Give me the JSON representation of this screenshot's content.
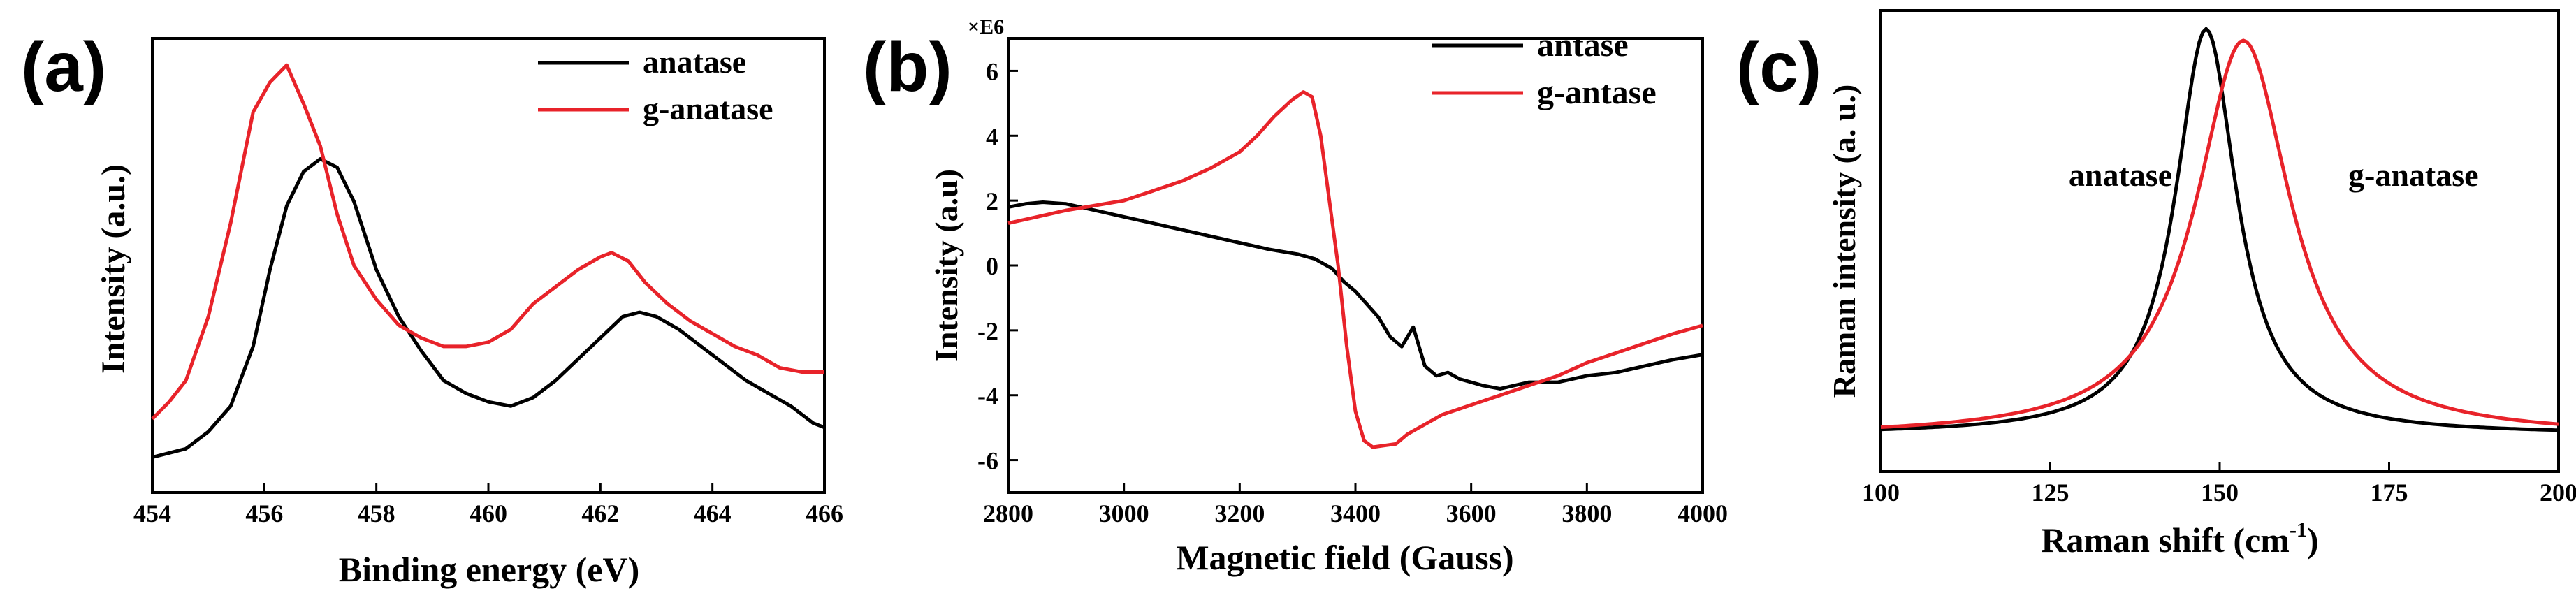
{
  "figure": {
    "panels": [
      "(a)",
      "(b)",
      "(c)"
    ]
  },
  "chart_data": [
    {
      "type": "line",
      "panel_label": "(a)",
      "title": "",
      "xlabel": "Binding energy (eV)",
      "ylabel": "Intensity (a.u.)",
      "xlim": [
        454,
        466
      ],
      "ylim": [
        0,
        100
      ],
      "xticks": [
        454,
        456,
        458,
        460,
        462,
        464,
        466
      ],
      "yticks": [],
      "grid": false,
      "legend_position": "top-right",
      "series": [
        {
          "name": "anatase",
          "color": "#000000",
          "x": [
            454.0,
            454.3,
            454.6,
            455.0,
            455.4,
            455.8,
            456.1,
            456.4,
            456.7,
            457.0,
            457.3,
            457.6,
            458.0,
            458.4,
            458.8,
            459.2,
            459.6,
            460.0,
            460.4,
            460.8,
            461.2,
            461.6,
            462.0,
            462.4,
            462.7,
            463.0,
            463.4,
            463.8,
            464.2,
            464.6,
            465.0,
            465.4,
            465.8,
            466.0
          ],
          "y": [
            5,
            6,
            7,
            11,
            17,
            31,
            49,
            64,
            72,
            75,
            73,
            65,
            49,
            38,
            30,
            23,
            20,
            18,
            17,
            19,
            23,
            28,
            33,
            38,
            39,
            38,
            35,
            31,
            27,
            23,
            20,
            17,
            13,
            12
          ]
        },
        {
          "name": "g-anatase",
          "color": "#e8232a",
          "x": [
            454.0,
            454.3,
            454.6,
            455.0,
            455.4,
            455.8,
            456.1,
            456.4,
            456.7,
            457.0,
            457.3,
            457.6,
            458.0,
            458.4,
            458.8,
            459.2,
            459.6,
            460.0,
            460.4,
            460.8,
            461.2,
            461.6,
            462.0,
            462.2,
            462.5,
            462.8,
            463.2,
            463.6,
            464.0,
            464.4,
            464.8,
            465.2,
            465.6,
            466.0
          ],
          "y": [
            14,
            18,
            23,
            38,
            60,
            86,
            93,
            97,
            88,
            78,
            62,
            50,
            42,
            36,
            33,
            31,
            31,
            32,
            35,
            41,
            45,
            49,
            52,
            53,
            51,
            46,
            41,
            37,
            34,
            31,
            29,
            26,
            25,
            25
          ]
        }
      ]
    },
    {
      "type": "line",
      "panel_label": "(b)",
      "title": "",
      "xlabel": "Magnetic field (Gauss)",
      "ylabel": "Intensity (a.u)",
      "y_multiplier_label": "×E6",
      "xlim": [
        2800,
        4000
      ],
      "ylim": [
        -7,
        7
      ],
      "xticks": [
        2800,
        3000,
        3200,
        3400,
        3600,
        3800,
        4000
      ],
      "yticks": [
        -6,
        -4,
        -2,
        0,
        2,
        4,
        6
      ],
      "grid": false,
      "legend_position": "top-right",
      "series": [
        {
          "name": "antase",
          "color": "#000000",
          "x": [
            2800,
            2830,
            2860,
            2900,
            2950,
            3000,
            3050,
            3100,
            3150,
            3200,
            3250,
            3300,
            3330,
            3360,
            3380,
            3400,
            3420,
            3440,
            3460,
            3480,
            3500,
            3520,
            3540,
            3560,
            3580,
            3600,
            3620,
            3650,
            3700,
            3750,
            3800,
            3850,
            3900,
            3950,
            4000
          ],
          "y": [
            1.8,
            1.9,
            1.95,
            1.9,
            1.7,
            1.5,
            1.3,
            1.1,
            0.9,
            0.7,
            0.5,
            0.35,
            0.2,
            -0.1,
            -0.5,
            -0.8,
            -1.2,
            -1.6,
            -2.2,
            -2.5,
            -1.9,
            -3.1,
            -3.4,
            -3.3,
            -3.5,
            -3.6,
            -3.7,
            -3.8,
            -3.6,
            -3.6,
            -3.4,
            -3.3,
            -3.1,
            -2.9,
            -2.75
          ]
        },
        {
          "name": "g-antase",
          "color": "#e8232a",
          "x": [
            2800,
            2850,
            2900,
            2950,
            3000,
            3050,
            3100,
            3150,
            3200,
            3230,
            3260,
            3290,
            3310,
            3325,
            3340,
            3355,
            3370,
            3385,
            3400,
            3415,
            3430,
            3450,
            3470,
            3490,
            3520,
            3550,
            3600,
            3650,
            3700,
            3750,
            3800,
            3850,
            3900,
            3950,
            4000
          ],
          "y": [
            1.3,
            1.5,
            1.7,
            1.85,
            2.0,
            2.3,
            2.6,
            3.0,
            3.5,
            4.0,
            4.6,
            5.1,
            5.35,
            5.2,
            4.0,
            2.0,
            0.0,
            -2.5,
            -4.5,
            -5.4,
            -5.6,
            -5.55,
            -5.5,
            -5.2,
            -4.9,
            -4.6,
            -4.3,
            -4.0,
            -3.7,
            -3.4,
            -3.0,
            -2.7,
            -2.4,
            -2.1,
            -1.85
          ]
        }
      ]
    },
    {
      "type": "line",
      "panel_label": "(c)",
      "title": "",
      "xlabel": "Raman shift (cm",
      "xlabel_superscript": "-1",
      "xlabel_suffix": ")",
      "ylabel": "Raman intensity (a. u.)",
      "xlim": [
        100,
        200
      ],
      "ylim": [
        0,
        1
      ],
      "xticks": [
        100,
        125,
        150,
        175,
        200
      ],
      "yticks": [],
      "grid": false,
      "annotations": [
        "anatase",
        "g-anatase"
      ],
      "series": [
        {
          "name": "anatase",
          "color": "#000000",
          "peak_center": 148,
          "peak_hwhm": 5.5,
          "peak_height": 0.88,
          "baseline": 0.08,
          "label_x": 137,
          "label_y": 0.62
        },
        {
          "name": "g-anatase",
          "color": "#e8232a",
          "peak_center": 153.5,
          "peak_hwhm": 8.5,
          "peak_height": 0.86,
          "baseline": 0.075,
          "label_x": 170,
          "label_y": 0.62
        }
      ]
    }
  ]
}
